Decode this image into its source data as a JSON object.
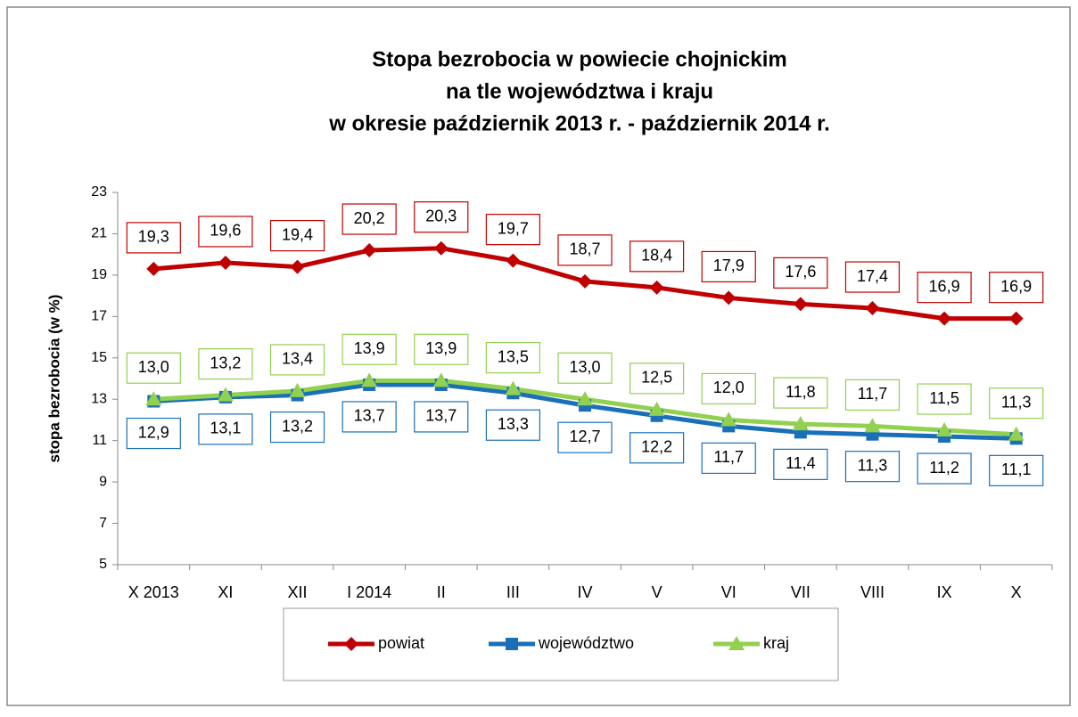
{
  "chart_data": {
    "type": "line",
    "title": [
      "Stopa bezrobocia w powiecie chojnickim",
      "na tle województwa i kraju",
      "w okresie październik 2013 r. - październik 2014 r."
    ],
    "y_label": "stopa bezrobocia (w %)",
    "categories": [
      "X 2013",
      "XI",
      "XII",
      "I 2014",
      "II",
      "III",
      "IV",
      "V",
      "VI",
      "VII",
      "VIII",
      "IX",
      "X"
    ],
    "ylim": [
      5,
      23
    ],
    "yticks": [
      5,
      7,
      9,
      11,
      13,
      15,
      17,
      19,
      21,
      23
    ],
    "grid": false,
    "legend": "bottom",
    "series": [
      {
        "name": "powiat",
        "color": "#c00000",
        "marker": "diamond",
        "label_position": "above",
        "values": [
          19.3,
          19.6,
          19.4,
          20.2,
          20.3,
          19.7,
          18.7,
          18.4,
          17.9,
          17.6,
          17.4,
          16.9,
          16.9
        ],
        "value_labels": [
          "19,3",
          "19,6",
          "19,4",
          "20,2",
          "20,3",
          "19,7",
          "18,7",
          "18,4",
          "17,9",
          "17,6",
          "17,4",
          "16,9",
          "16,9"
        ]
      },
      {
        "name": "województwo",
        "color": "#1a70b8",
        "marker": "square",
        "label_position": "below",
        "values": [
          12.9,
          13.1,
          13.2,
          13.7,
          13.7,
          13.3,
          12.7,
          12.2,
          11.7,
          11.4,
          11.3,
          11.2,
          11.1
        ],
        "value_labels": [
          "12,9",
          "13,1",
          "13,2",
          "13,7",
          "13,7",
          "13,3",
          "12,7",
          "12,2",
          "11,7",
          "11,4",
          "11,3",
          "11,2",
          "11,1"
        ]
      },
      {
        "name": "kraj",
        "color": "#92d050",
        "marker": "triangle",
        "label_position": "above",
        "values": [
          13.0,
          13.2,
          13.4,
          13.9,
          13.9,
          13.5,
          13.0,
          12.5,
          12.0,
          11.8,
          11.7,
          11.5,
          11.3
        ],
        "value_labels": [
          "13,0",
          "13,2",
          "13,4",
          "13,9",
          "13,9",
          "13,5",
          "13,0",
          "12,5",
          "12,0",
          "11,8",
          "11,7",
          "11,5",
          "11,3"
        ]
      }
    ]
  }
}
